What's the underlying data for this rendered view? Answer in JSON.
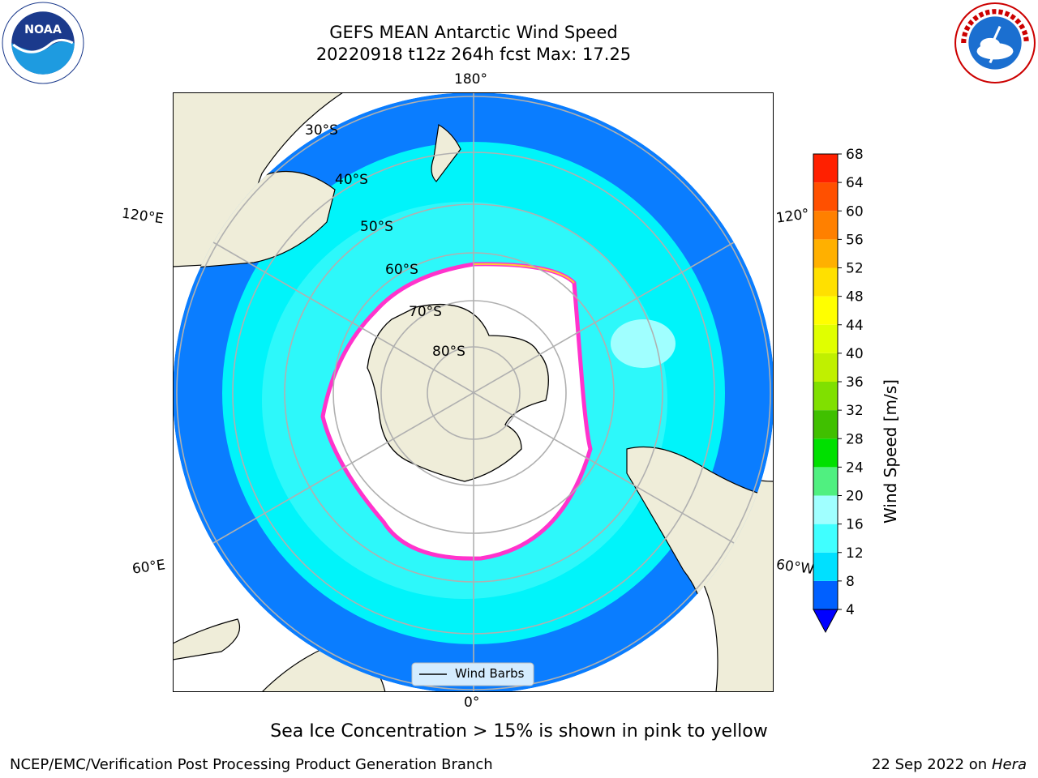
{
  "header": {
    "title_line1": "GEFS MEAN Antarctic Wind Speed",
    "title_line2": "20220918 t12z 264h fcst   Max: 17.25"
  },
  "logos": {
    "left": "noaa-logo",
    "right": "nws-logo"
  },
  "map": {
    "longitude_labels": [
      "180°",
      "120°E",
      "120°",
      "60°E",
      "60°W",
      "0°"
    ],
    "latitude_labels": [
      "30°S",
      "40°S",
      "50°S",
      "60°S",
      "70°S",
      "80°S"
    ],
    "legend_label": "Wind Barbs"
  },
  "chart_data": {
    "type": "heatmap",
    "title": "GEFS MEAN Antarctic Wind Speed",
    "subtitle": "20220918 t12z 264h fcst   Max: 17.25",
    "max": 17.25,
    "colorbar": {
      "label": "Wind Speed [m/s]",
      "ticks": [
        4,
        8,
        12,
        16,
        20,
        24,
        28,
        32,
        36,
        40,
        44,
        48,
        52,
        56,
        60,
        64,
        68
      ],
      "colors": [
        "#0060ff",
        "#00e0ff",
        "#40ffff",
        "#a0ffff",
        "#50f080",
        "#00e000",
        "#40c000",
        "#80e000",
        "#c0f000",
        "#e0ff00",
        "#ffff00",
        "#ffe000",
        "#ffb000",
        "#ff8000",
        "#ff5000",
        "#ff2000",
        "#ff0000"
      ],
      "extend_color": "#0000ff"
    },
    "sea_ice_note": "Sea Ice Concentration > 15% is shown in pink to yellow",
    "legend": "Wind Barbs"
  },
  "colors": {
    "land": "#efedd9",
    "ocean_low": "#0a7dff",
    "ocean_mid": "#00f4fa",
    "ocean_high": "#40fafa",
    "ice_edge": "#ff33cc",
    "ice_fill": "#ffffff",
    "grid": "#b0b0b0"
  },
  "footer": {
    "left": "NCEP/EMC/Verification Post Processing Product Generation Branch",
    "date": "22 Sep 2022 on",
    "machine": "Hera"
  }
}
